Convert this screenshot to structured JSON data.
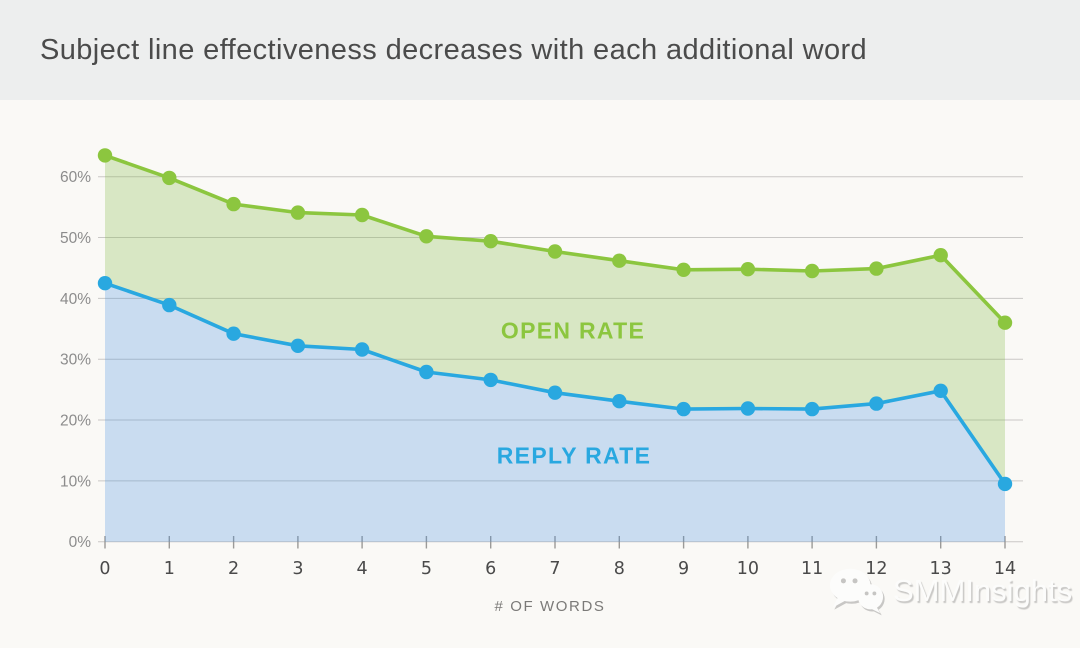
{
  "header": {
    "title": "Subject line effectiveness decreases with each additional word"
  },
  "chart_data": {
    "type": "area",
    "title": "Subject line effectiveness decreases with each additional word",
    "x": [
      0,
      1,
      2,
      3,
      4,
      5,
      6,
      7,
      8,
      9,
      10,
      11,
      12,
      13,
      14
    ],
    "series": [
      {
        "name": "OPEN RATE",
        "values": [
          63.5,
          59.8,
          55.5,
          54.1,
          53.7,
          50.2,
          49.4,
          47.7,
          46.2,
          44.7,
          44.8,
          44.5,
          44.9,
          47.1,
          36.0
        ],
        "line_color": "#8CC63F",
        "fill_color": "rgba(130,185,70,0.28)"
      },
      {
        "name": "REPLY RATE",
        "values": [
          42.5,
          38.9,
          34.2,
          32.2,
          31.6,
          27.9,
          26.6,
          24.5,
          23.1,
          21.8,
          21.9,
          21.8,
          22.7,
          24.8,
          9.5
        ],
        "line_color": "#29A8E0",
        "fill_color": "rgba(60,140,225,0.26)"
      }
    ],
    "xlabel": "# OF WORDS",
    "ylabel": "",
    "ylim": [
      0,
      65
    ],
    "yticks": [
      0,
      10,
      20,
      30,
      40,
      50,
      60
    ],
    "ytick_labels": [
      "0%",
      "10%",
      "20%",
      "30%",
      "40%",
      "50%",
      "60%"
    ],
    "grid": "horizontal",
    "legend_position": "inline-area-labels"
  },
  "watermark": {
    "text": "SMMInsights",
    "icon": "wechat-icon"
  },
  "colors": {
    "page_bg": "#FAF9F6",
    "header_bg": "#EDEEEE",
    "title_text": "#4B4B4B",
    "open_rate": "#8CC63F",
    "reply_rate": "#29A8E0",
    "gridline": "#C9C8C6",
    "y_tick_text": "#8C8C8C",
    "x_tick_text": "#4A4A4A"
  }
}
